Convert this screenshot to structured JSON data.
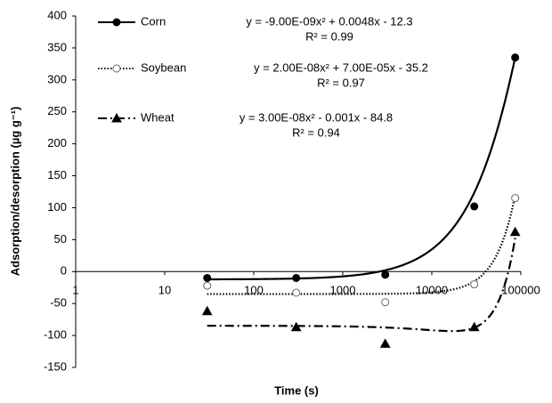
{
  "chart_data": {
    "type": "scatter",
    "x_label": "Time (s)",
    "y_label": "Adsorption/desorption (µg g⁻¹)",
    "x_log": true,
    "xlim": [
      1,
      100000
    ],
    "xticks": [
      1,
      10,
      100,
      1000,
      10000,
      100000
    ],
    "ylim": [
      -150,
      400
    ],
    "yticks": [
      -150,
      -100,
      -50,
      0,
      50,
      100,
      150,
      200,
      250,
      300,
      350,
      400
    ],
    "x": [
      30,
      300,
      3000,
      30000,
      86400
    ],
    "series": [
      {
        "name": "Corn",
        "color": "#000000",
        "marker": "circle",
        "line_style": "solid",
        "values": [
          -10,
          -10,
          -5,
          102,
          335
        ],
        "trendline": {
          "coefficients": [
            -9e-09,
            0.0048,
            -12.3
          ],
          "equation": "y = -9.00E-09x² + 0.0048x - 12.3",
          "r2": "R² = 0.99"
        }
      },
      {
        "name": "Soybean",
        "color": "#000000",
        "marker": "open-circle",
        "line_style": "dotted",
        "values": [
          -22,
          -33,
          -48,
          -20,
          115
        ],
        "trendline": {
          "coefficients": [
            2e-08,
            7e-05,
            -35.2
          ],
          "equation": "y = 2.00E-08x² + 7.00E-05x - 35.2",
          "r2": "R² = 0.97"
        }
      },
      {
        "name": "Wheat",
        "color": "#000000",
        "marker": "triangle",
        "line_style": "dashdot",
        "values": [
          -62,
          -87,
          -113,
          -87,
          62
        ],
        "trendline": {
          "coefficients": [
            3e-08,
            -0.001,
            -84.8
          ],
          "equation": "y = 3.00E-08x² - 0.001x - 84.8",
          "r2": "R² = 0.94"
        }
      }
    ]
  }
}
